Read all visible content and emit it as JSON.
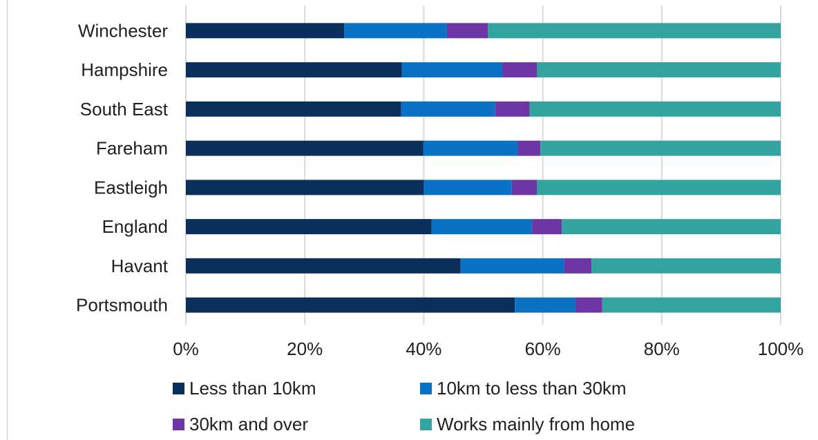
{
  "chart_data": {
    "type": "bar",
    "orientation": "horizontal",
    "stacked": true,
    "title": "",
    "xlabel": "",
    "ylabel": "",
    "xlim": [
      0,
      100
    ],
    "x_tick_labels": [
      "0%",
      "20%",
      "40%",
      "60%",
      "80%",
      "100%"
    ],
    "grid": true,
    "legend_position": "bottom",
    "categories": [
      "Winchester",
      "Hampshire",
      "South East",
      "Fareham",
      "Eastleigh",
      "England",
      "Havant",
      "Portsmouth"
    ],
    "series": [
      {
        "name": "Less than 10km",
        "color": "#0b2f5b",
        "values": [
          26.6,
          36.3,
          36.2,
          39.9,
          40.0,
          41.3,
          46.2,
          55.3
        ]
      },
      {
        "name": "10km to less than 30km",
        "color": "#0a72c4",
        "values": [
          17.3,
          16.9,
          15.8,
          15.9,
          14.8,
          16.9,
          17.4,
          10.2
        ]
      },
      {
        "name": "30km and over",
        "color": "#6e35a5",
        "values": [
          6.9,
          5.8,
          5.8,
          3.8,
          4.2,
          5.0,
          4.6,
          4.5
        ]
      },
      {
        "name": "Works mainly from home",
        "color": "#33a3a0",
        "values": [
          49.2,
          41.0,
          42.2,
          40.4,
          41.0,
          36.8,
          31.8,
          30.0
        ]
      }
    ]
  }
}
